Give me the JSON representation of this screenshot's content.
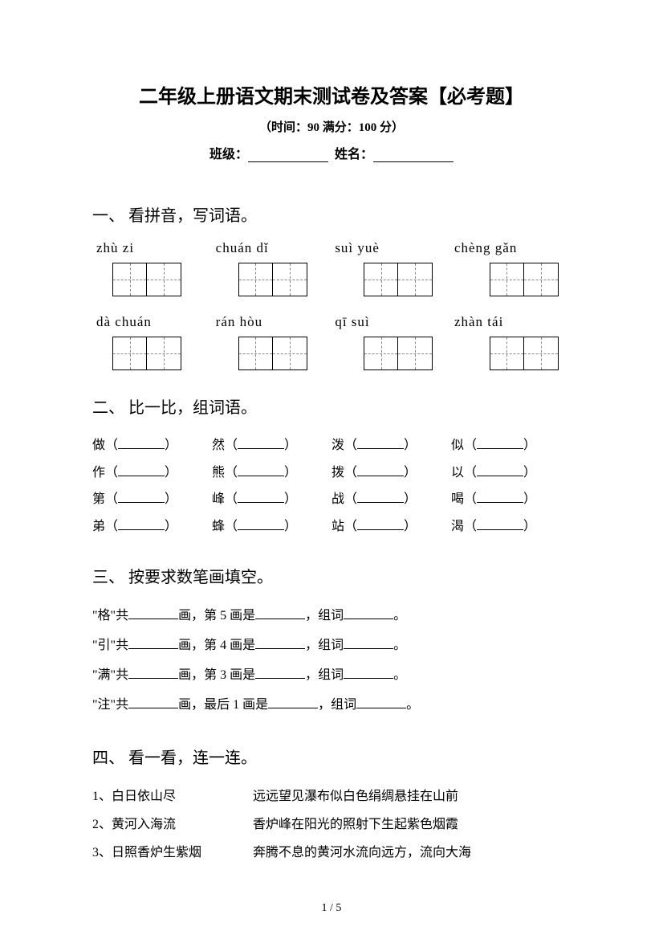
{
  "title": "二年级上册语文期末测试卷及答案【必考题】",
  "subtitle": "（时间：90  满分：100 分）",
  "info": {
    "class_label": "班级：",
    "name_label": "姓名："
  },
  "section1": {
    "heading": "一、 看拼音，写词语。",
    "row1": [
      "zhù   zi",
      "chuán dǐ",
      "suì  yuè",
      "chèng gǎn"
    ],
    "row2": [
      "dà   chuán",
      "rán   hòu",
      "qī    suì",
      "zhàn   tái"
    ]
  },
  "section2": {
    "heading": "二、 比一比，组词语。",
    "items": [
      "做（",
      "然（",
      "泼（",
      "似（",
      "作（",
      "熊（",
      "拨（",
      "以（",
      "第（",
      "峰（",
      "战（",
      "喝（",
      "弟（",
      "蜂（",
      "站（",
      "渴（"
    ],
    "close": "）"
  },
  "section3": {
    "heading": "三、 按要求数笔画填空。",
    "lines": [
      {
        "char": "\"格\"共",
        "mid": "画，第 5 画是",
        "end": "，组词"
      },
      {
        "char": "\"引\"共",
        "mid": "画，第 4 画是",
        "end": "，组词"
      },
      {
        "char": "\"满\"共",
        "mid": "画，第 3 画是",
        "end": "，组词"
      },
      {
        "char": "\"注\"共",
        "mid": "画，最后 1 画是",
        "end": "，组词"
      }
    ],
    "period": "。"
  },
  "section4": {
    "heading": "四、 看一看，连一连。",
    "rows": [
      {
        "l": "1、白日依山尽",
        "r": "远远望见瀑布似白色绢绸悬挂在山前"
      },
      {
        "l": "2、黄河入海流",
        "r": "香炉峰在阳光的照射下生起紫色烟霞"
      },
      {
        "l": "3、日照香炉生紫烟",
        "r": "奔腾不息的黄河水流向远方，流向大海"
      }
    ]
  },
  "page": "1 / 5"
}
